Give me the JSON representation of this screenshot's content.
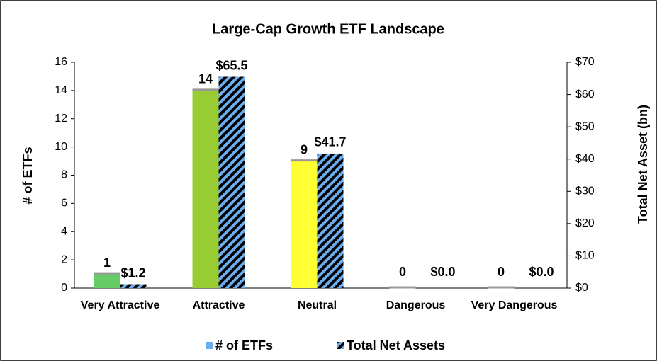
{
  "chart_data": {
    "type": "bar",
    "title": "Large-Cap Growth ETF Landscape",
    "categories": [
      "Very Attractive",
      "Attractive",
      "Neutral",
      "Dangerous",
      "Very Dangerous"
    ],
    "series": [
      {
        "name": "# of ETFs",
        "color": "#6aaef0",
        "colors": [
          "#66cc66",
          "#99cc33",
          "#ffff33",
          "#99cc33",
          "#99cc33"
        ],
        "values": [
          1,
          14,
          9,
          0,
          0
        ]
      },
      {
        "name": "Total Net Assets",
        "color": "#6aaef0",
        "axis": "y2",
        "values": [
          1.2,
          65.5,
          41.7,
          0,
          0
        ],
        "value_labels": [
          "$1.2",
          "$65.5",
          "$41.7",
          "$0.0",
          "$0.0"
        ]
      }
    ],
    "ylabel": "# of ETFs",
    "y2label": "Total Net Asset (bn)",
    "ylim": [
      0,
      16
    ],
    "yticks": [
      0,
      2,
      4,
      6,
      8,
      10,
      12,
      14,
      16
    ],
    "y2lim": [
      0,
      70
    ],
    "y2ticks": [
      {
        "value": 0,
        "label": "$0"
      },
      {
        "value": 10,
        "label": "$10"
      },
      {
        "value": 20,
        "label": "$20"
      },
      {
        "value": 30,
        "label": "$30"
      },
      {
        "value": 40,
        "label": "$40"
      },
      {
        "value": 50,
        "label": "$50"
      },
      {
        "value": 60,
        "label": "$60"
      },
      {
        "value": 70,
        "label": "$70"
      }
    ],
    "legend": "bottom"
  }
}
